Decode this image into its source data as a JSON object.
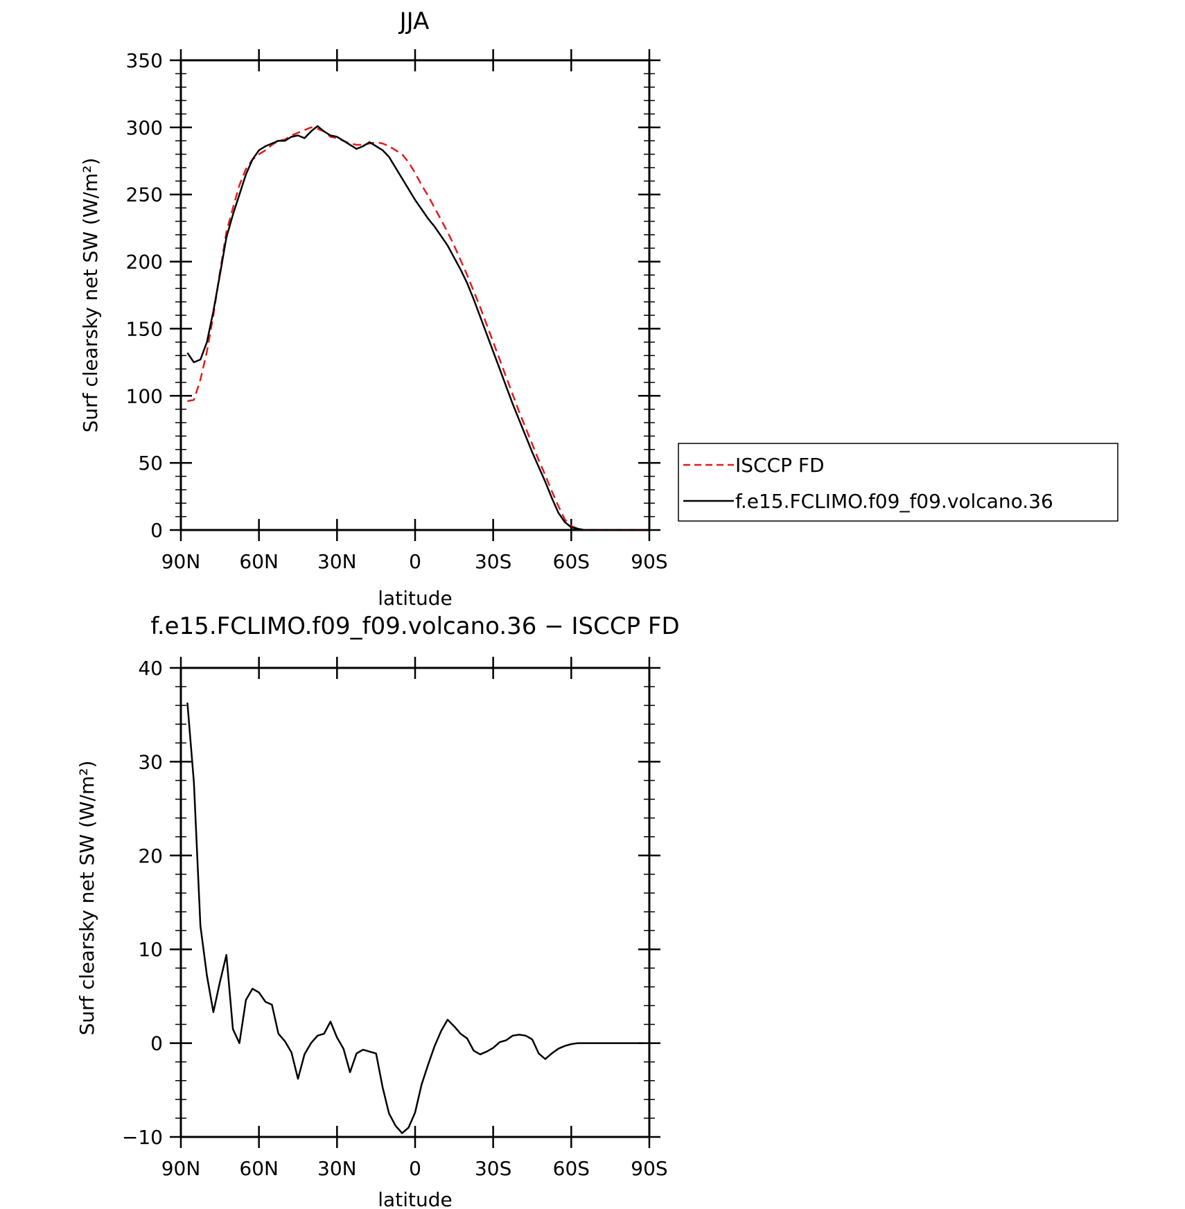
{
  "chart_data": [
    {
      "type": "line",
      "title": "JJA",
      "xlabel": "latitude",
      "ylabel": "Surf clearsky net SW (W/m²)",
      "xlim": [
        -90,
        90
      ],
      "ylim": [
        0,
        350
      ],
      "x_ticks": [
        -90,
        -60,
        -30,
        0,
        30,
        60,
        90
      ],
      "x_tick_labels": [
        "90N",
        "60N",
        "30N",
        "0",
        "30S",
        "60S",
        "90S"
      ],
      "y_ticks": [
        0,
        50,
        100,
        150,
        200,
        250,
        300,
        350
      ],
      "y_tick_labels": [
        "0",
        "50",
        "100",
        "150",
        "200",
        "250",
        "300",
        "350"
      ],
      "grid": false,
      "legend_position": "right",
      "series": [
        {
          "name": "ISCCP FD",
          "color": "#e41a1a",
          "dash": "dashed",
          "x": [
            -87.5,
            -85,
            -82.5,
            -80,
            -77.5,
            -75,
            -72.5,
            -70,
            -67.5,
            -65,
            -62.5,
            -60,
            -57.5,
            -55,
            -52.5,
            -50,
            -47.5,
            -45,
            -42.5,
            -40,
            -37.5,
            -35,
            -32.5,
            -30,
            -27.5,
            -25,
            -22.5,
            -20,
            -17.5,
            -15,
            -12.5,
            -10,
            -7.5,
            -5,
            -2.5,
            0,
            2.5,
            5,
            7.5,
            10,
            12.5,
            15,
            17.5,
            20,
            22.5,
            25,
            27.5,
            30,
            32.5,
            35,
            37.5,
            40,
            42.5,
            45,
            47.5,
            50,
            52.5,
            55,
            57.5,
            60,
            62.5,
            65,
            67.5,
            70,
            72.5,
            75,
            77.5,
            80,
            82.5,
            85,
            87.5
          ],
          "y": [
            96,
            97,
            112,
            133,
            160,
            192,
            222,
            240,
            257,
            269,
            276,
            280,
            283,
            287,
            290,
            291,
            294,
            296,
            298,
            300,
            299,
            297,
            293,
            292,
            290,
            288,
            287,
            287,
            288,
            289,
            288,
            286,
            283,
            280,
            274,
            266,
            257,
            249,
            240,
            231,
            222,
            212,
            201,
            190,
            178,
            166,
            153,
            140,
            127,
            114,
            101,
            88,
            76,
            64,
            52,
            41,
            29,
            18,
            8,
            3,
            1,
            0,
            0,
            0,
            0,
            0,
            0,
            0,
            0,
            0,
            0
          ]
        },
        {
          "name": "f.e15.FCLIMO.f09_f09.volcano.36",
          "color": "#000000",
          "dash": "solid",
          "x": [
            -87.5,
            -85,
            -82.5,
            -80,
            -77.5,
            -75,
            -72.5,
            -70,
            -67.5,
            -65,
            -62.5,
            -60,
            -57.5,
            -55,
            -52.5,
            -50,
            -47.5,
            -45,
            -42.5,
            -40,
            -37.5,
            -35,
            -32.5,
            -30,
            -27.5,
            -25,
            -22.5,
            -20,
            -17.5,
            -15,
            -12.5,
            -10,
            -7.5,
            -5,
            -2.5,
            0,
            2.5,
            5,
            7.5,
            10,
            12.5,
            15,
            17.5,
            20,
            22.5,
            25,
            27.5,
            30,
            32.5,
            35,
            37.5,
            40,
            42.5,
            45,
            47.5,
            50,
            52.5,
            55,
            57.5,
            60,
            62.5,
            65,
            67.5,
            70,
            72.5,
            75,
            77.5,
            80,
            82.5,
            85,
            87.5
          ],
          "y": [
            132,
            125,
            127,
            140,
            163,
            190,
            218,
            235,
            250,
            265,
            276,
            283,
            286,
            288,
            290,
            290,
            293,
            294,
            292,
            297,
            301,
            297,
            294,
            293,
            290,
            287,
            284,
            286,
            289,
            286,
            283,
            278,
            270,
            262,
            254,
            246,
            239,
            232,
            226,
            219,
            212,
            203,
            194,
            184,
            172,
            159,
            146,
            133,
            120,
            107,
            94,
            82,
            70,
            58,
            47,
            36,
            24,
            13,
            6,
            2,
            1,
            0,
            0,
            0,
            0,
            0,
            0,
            0,
            0,
            0,
            0
          ]
        }
      ]
    },
    {
      "type": "line",
      "title": "f.e15.FCLIMO.f09_f09.volcano.36 − ISCCP FD",
      "xlabel": "latitude",
      "ylabel": "Surf clearsky net SW (W/m²)",
      "xlim": [
        -90,
        90
      ],
      "ylim": [
        -10,
        40
      ],
      "x_ticks": [
        -90,
        -60,
        -30,
        0,
        30,
        60,
        90
      ],
      "x_tick_labels": [
        "90N",
        "60N",
        "30N",
        "0",
        "30S",
        "60S",
        "90S"
      ],
      "y_ticks": [
        -10,
        0,
        10,
        20,
        30,
        40
      ],
      "y_tick_labels": [
        "−10",
        "0",
        "10",
        "20",
        "30",
        "40"
      ],
      "grid": false,
      "series": [
        {
          "color": "#000000",
          "dash": "solid",
          "x": [
            -87.5,
            -85,
            -82.5,
            -80,
            -77.5,
            -75,
            -72.5,
            -70,
            -67.5,
            -65,
            -62.5,
            -60,
            -57.5,
            -55,
            -52.5,
            -50,
            -47.5,
            -45,
            -42.5,
            -40,
            -37.5,
            -35,
            -32.5,
            -30,
            -27.5,
            -25,
            -22.5,
            -20,
            -17.5,
            -15,
            -12.5,
            -10,
            -7.5,
            -5,
            -2.5,
            0,
            2.5,
            5,
            7.5,
            10,
            12.5,
            15,
            17.5,
            20,
            22.5,
            25,
            27.5,
            30,
            32.5,
            35,
            37.5,
            40,
            42.5,
            45,
            47.5,
            50,
            52.5,
            55,
            57.5,
            60,
            62.5,
            65,
            67.5,
            70,
            72.5,
            75,
            77.5,
            80,
            82.5,
            85,
            87.5
          ],
          "y": [
            36.3,
            27.8,
            12.5,
            7.2,
            3.3,
            6.5,
            9.4,
            1.5,
            0,
            4.6,
            5.8,
            5.4,
            4.4,
            4.1,
            1.0,
            0.2,
            -1.0,
            -3.8,
            -1.2,
            0,
            0.8,
            1.0,
            2.3,
            0.6,
            -0.6,
            -3.1,
            -1.1,
            -0.7,
            -0.9,
            -1.1,
            -4.7,
            -7.5,
            -8.8,
            -9.6,
            -9.0,
            -7.4,
            -4.4,
            -2.3,
            -0.3,
            1.3,
            2.5,
            1.8,
            1.0,
            0.5,
            -0.8,
            -1.2,
            -0.9,
            -0.5,
            0.1,
            0.3,
            0.8,
            0.9,
            0.8,
            0.4,
            -1.1,
            -1.7,
            -1.1,
            -0.6,
            -0.3,
            -0.1,
            0,
            0,
            0,
            0,
            0,
            0,
            0,
            0,
            0,
            0,
            0
          ]
        }
      ]
    }
  ]
}
